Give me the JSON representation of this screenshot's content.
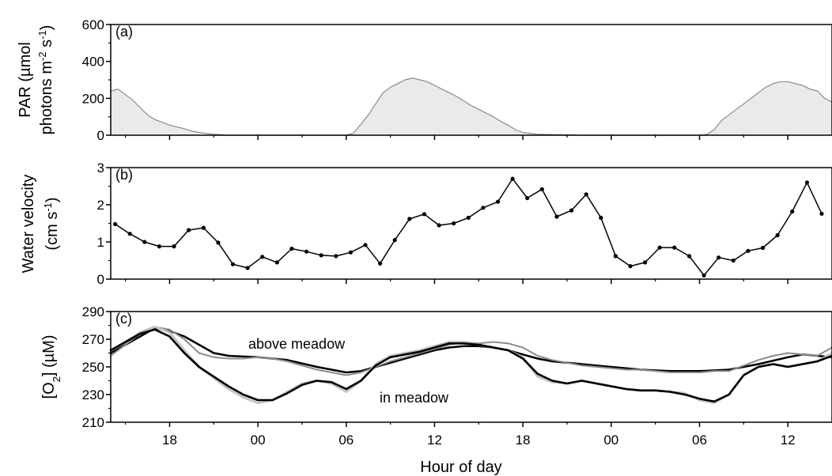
{
  "chart_data": [
    {
      "panel": "(a)",
      "type": "area",
      "ylabel_line1": "PAR (µmol",
      "ylabel_line2": "photons m",
      "ylabel_sup1": "-2",
      "ylabel_mid": " s",
      "ylabel_sup2": "-1",
      "ylabel_end": ")",
      "ylim": [
        0,
        600
      ],
      "yticks": [
        0,
        200,
        400,
        600
      ],
      "xlim": [
        14,
        63
      ],
      "series": [
        {
          "color": "#8a8a8a",
          "x": [
            14.0,
            14.5,
            15.0,
            15.5,
            16.0,
            16.5,
            17.0,
            17.5,
            18.0,
            18.5,
            19.0,
            19.5,
            20.0,
            20.5,
            21.0,
            22.0,
            24.0,
            27.0,
            30.0,
            30.5,
            31.0,
            31.5,
            32.0,
            32.5,
            33.0,
            33.5,
            34.0,
            34.5,
            35.0,
            35.5,
            36.0,
            36.5,
            37.0,
            37.5,
            38.0,
            38.5,
            39.0,
            39.5,
            40.0,
            40.5,
            41.0,
            41.5,
            42.0,
            43.0,
            46.0,
            50.0,
            53.0,
            54.0,
            54.5,
            55.0,
            55.5,
            56.0,
            56.5,
            57.0,
            57.5,
            58.0,
            58.5,
            59.0,
            59.5,
            60.0,
            60.5,
            61.0,
            61.5,
            62.0,
            62.5,
            63.0
          ],
          "y": [
            240,
            250,
            220,
            190,
            150,
            110,
            85,
            70,
            55,
            45,
            35,
            22,
            15,
            10,
            5,
            0,
            0,
            0,
            0,
            12,
            60,
            110,
            170,
            230,
            260,
            280,
            300,
            310,
            300,
            290,
            270,
            250,
            230,
            210,
            185,
            160,
            140,
            120,
            100,
            75,
            55,
            30,
            15,
            5,
            0,
            0,
            0,
            0,
            5,
            30,
            80,
            110,
            140,
            170,
            200,
            230,
            260,
            280,
            290,
            290,
            280,
            270,
            250,
            240,
            200,
            180
          ]
        }
      ]
    },
    {
      "panel": "(b)",
      "type": "line",
      "ylabel_line1": "Water velocity",
      "ylabel_line2": "(cm s",
      "ylabel_sup": "-1",
      "ylabel_end": ")",
      "ylim": [
        0,
        3
      ],
      "yticks": [
        0,
        1,
        2,
        3
      ],
      "xlim": [
        14,
        63
      ],
      "series": [
        {
          "color": "#000000",
          "x": [
            14.3,
            15.3,
            16.3,
            17.3,
            18.3,
            19.3,
            20.3,
            21.3,
            22.3,
            23.3,
            24.3,
            25.3,
            26.3,
            27.3,
            28.3,
            29.3,
            30.3,
            31.3,
            32.3,
            33.3,
            34.3,
            35.3,
            36.3,
            37.3,
            38.3,
            39.3,
            40.3,
            41.3,
            42.3,
            43.3,
            44.3,
            45.3,
            46.3,
            47.3,
            48.3,
            49.3,
            50.3,
            51.3,
            52.3,
            53.3,
            54.3,
            55.3,
            56.3,
            57.3,
            58.3,
            59.3,
            60.3,
            61.3,
            62.3
          ],
          "y": [
            1.48,
            1.22,
            1.0,
            0.88,
            0.88,
            1.32,
            1.38,
            0.98,
            0.4,
            0.3,
            0.6,
            0.45,
            0.82,
            0.74,
            0.64,
            0.62,
            0.72,
            0.92,
            0.42,
            1.05,
            1.62,
            1.75,
            1.45,
            1.5,
            1.65,
            1.92,
            2.08,
            2.7,
            2.18,
            2.42,
            1.68,
            1.85,
            2.28,
            1.65,
            0.62,
            0.35,
            0.45,
            0.85,
            0.85,
            0.62,
            0.1,
            0.58,
            0.5,
            0.76,
            0.84,
            1.18,
            1.82,
            2.6,
            1.76
          ]
        }
      ]
    },
    {
      "panel": "(c)",
      "type": "line",
      "ylabel_pre": "[O",
      "ylabel_sub": "2",
      "ylabel_post": "] (µM)",
      "xlabel": "Hour of day",
      "ylim": [
        210,
        290
      ],
      "yticks": [
        210,
        230,
        250,
        270,
        290
      ],
      "xlim": [
        14,
        63
      ],
      "xticks": [
        {
          "x": 18,
          "label": "18"
        },
        {
          "x": 24,
          "label": "00"
        },
        {
          "x": 30,
          "label": "06"
        },
        {
          "x": 36,
          "label": "12"
        },
        {
          "x": 42,
          "label": "18"
        },
        {
          "x": 48,
          "label": "00"
        },
        {
          "x": 54,
          "label": "06"
        },
        {
          "x": 60,
          "label": "12"
        }
      ],
      "annotations": [
        "above meadow",
        "in meadow"
      ],
      "series": [
        {
          "color": "#000000",
          "x": [
            14,
            15,
            16,
            17,
            18,
            19,
            20,
            21,
            22,
            24,
            26,
            28,
            30,
            31,
            32,
            33,
            34,
            35,
            36,
            37,
            38,
            39,
            40,
            41,
            42,
            43,
            44,
            46,
            48,
            50,
            52,
            54,
            56,
            58,
            60,
            61,
            62,
            63
          ],
          "y": [
            260,
            266,
            272,
            278,
            276,
            272,
            266,
            260,
            258,
            257,
            255,
            250,
            246,
            247,
            250,
            253,
            256,
            259,
            262,
            264,
            265,
            265,
            264,
            262,
            259,
            256,
            254,
            252,
            250,
            248,
            247,
            247,
            248,
            252,
            257,
            259,
            258,
            257
          ]
        },
        {
          "color": "#8c8c8c",
          "x": [
            14,
            15,
            16,
            17,
            18,
            19,
            20,
            21,
            22,
            23,
            24,
            25,
            26,
            27,
            28,
            29,
            30,
            31,
            32,
            33,
            34,
            35,
            36,
            37,
            38,
            39,
            40,
            41,
            42,
            43,
            44,
            45,
            46,
            47,
            48,
            49,
            50,
            51,
            52,
            53,
            54,
            55,
            56,
            57,
            58,
            59,
            60,
            61,
            62,
            63
          ],
          "y": [
            258,
            266,
            274,
            279,
            277,
            270,
            260,
            257,
            256,
            256,
            257,
            256,
            254,
            251,
            248,
            246,
            244,
            246,
            250,
            254,
            257,
            260,
            263,
            266,
            268,
            267,
            268,
            267,
            264,
            258,
            255,
            253,
            251,
            250,
            249,
            248,
            248,
            247,
            246,
            246,
            246,
            247,
            247,
            251,
            255,
            258,
            260,
            259,
            258,
            264
          ]
        },
        {
          "color": "#c4c4c4",
          "x": [
            14,
            15,
            16,
            17,
            18,
            19,
            20,
            21,
            22,
            23,
            24,
            25,
            26,
            27,
            28,
            29,
            30,
            31,
            32,
            33,
            34,
            35,
            36,
            37,
            38,
            39,
            40,
            41,
            42,
            43,
            44,
            45,
            46,
            47,
            48,
            49,
            50,
            51,
            52,
            53,
            54,
            55,
            56,
            57,
            58,
            59,
            60,
            61,
            62,
            63
          ],
          "y": [
            262,
            268,
            275,
            279,
            275,
            262,
            250,
            242,
            234,
            228,
            224,
            226,
            232,
            238,
            240,
            238,
            232,
            240,
            252,
            258,
            260,
            262,
            265,
            268,
            268,
            266,
            264,
            262,
            257,
            243,
            239,
            238,
            240,
            238,
            236,
            234,
            233,
            233,
            232,
            231,
            226,
            224,
            230,
            244,
            250,
            252,
            250,
            252,
            254,
            260
          ]
        },
        {
          "color": "#000000",
          "x": [
            14,
            15,
            16,
            17,
            18,
            19,
            20,
            21,
            22,
            23,
            24,
            25,
            26,
            27,
            28,
            29,
            30,
            31,
            32,
            33,
            34,
            35,
            36,
            37,
            38,
            39,
            40,
            41,
            42,
            43,
            44,
            45,
            46,
            47,
            48,
            49,
            50,
            51,
            52,
            53,
            54,
            55,
            56,
            57,
            58,
            59,
            60,
            61,
            62,
            63
          ],
          "y": [
            262,
            268,
            274,
            277,
            272,
            260,
            250,
            243,
            236,
            230,
            226,
            226,
            231,
            237,
            240,
            239,
            234,
            240,
            251,
            257,
            259,
            261,
            264,
            267,
            267,
            266,
            264,
            262,
            256,
            245,
            240,
            238,
            240,
            238,
            236,
            234,
            233,
            233,
            232,
            230,
            227,
            225,
            230,
            244,
            250,
            252,
            250,
            252,
            254,
            258
          ]
        }
      ]
    }
  ]
}
